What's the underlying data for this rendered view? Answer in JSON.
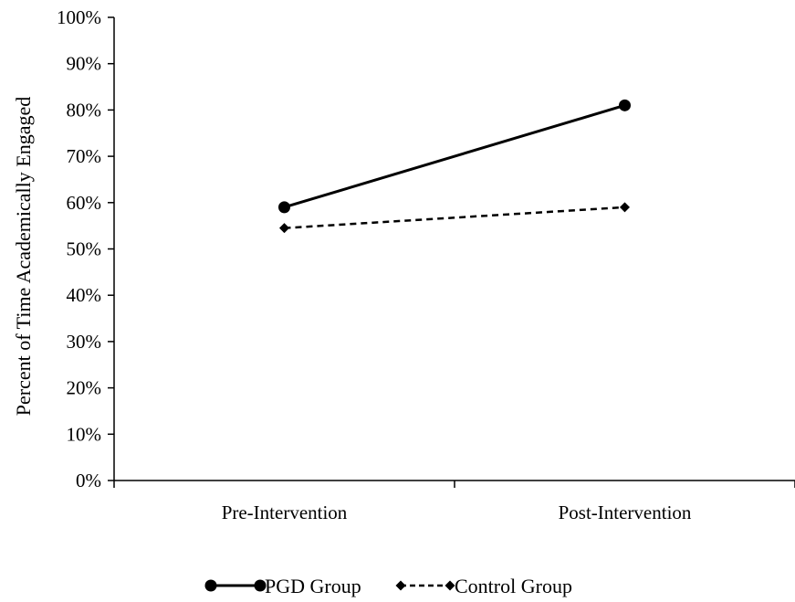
{
  "chart_data": {
    "type": "line",
    "title": "",
    "xlabel": "",
    "ylabel": "Percent of Time Academically Engaged",
    "categories": [
      "Pre-Intervention",
      "Post-Intervention"
    ],
    "ylim": [
      0,
      100
    ],
    "yticks": [
      "0%",
      "10%",
      "20%",
      "30%",
      "40%",
      "50%",
      "60%",
      "70%",
      "80%",
      "90%",
      "100%"
    ],
    "grid": false,
    "legend_position": "bottom",
    "series": [
      {
        "name": "PGD Group",
        "values": [
          59,
          81
        ],
        "line_style": "solid",
        "marker": "circle",
        "color": "#000000"
      },
      {
        "name": "Control Group",
        "values": [
          54.5,
          59
        ],
        "line_style": "dashed",
        "marker": "diamond",
        "color": "#000000"
      }
    ]
  }
}
